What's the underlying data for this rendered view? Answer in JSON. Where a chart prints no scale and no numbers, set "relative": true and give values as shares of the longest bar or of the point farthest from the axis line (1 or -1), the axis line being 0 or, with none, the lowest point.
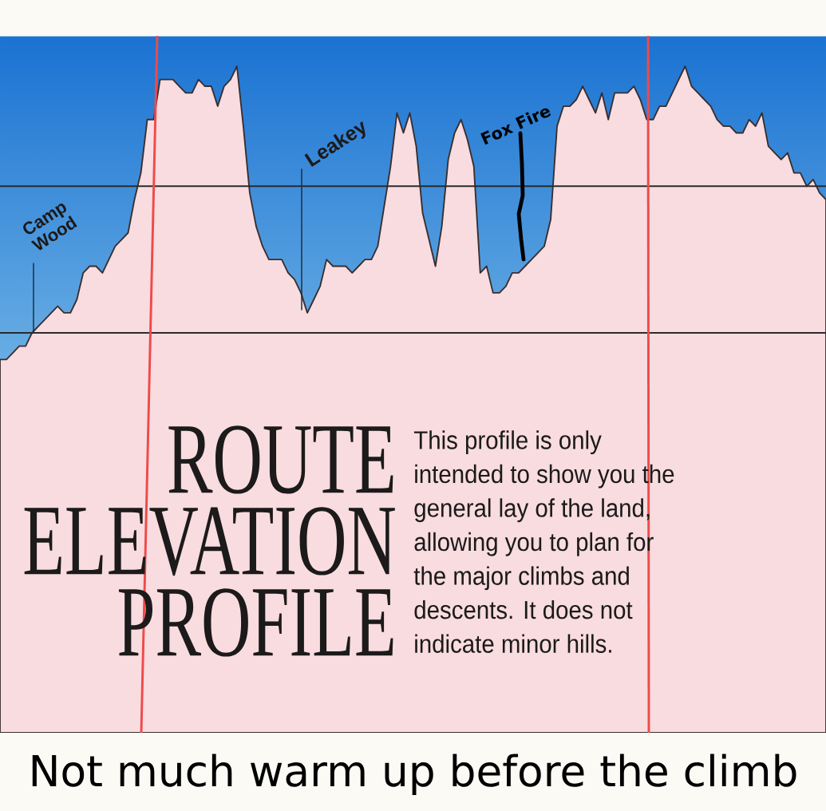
{
  "chart_data": {
    "type": "area",
    "title": "ROUTE ELEVATION PROFILE",
    "annotations": [
      "Camp Wood",
      "Leakey",
      "Fox Fire",
      "This profile is only intended to show you the general lay of the land, allowing you to plan for the major climbs and descents. It does not indicate minor hills.",
      "Not much warm up before the climb"
    ],
    "relative": true,
    "color": "#f8dcdf",
    "categories": [
      null,
      null,
      null,
      null,
      null,
      null,
      null,
      null,
      null,
      null,
      null,
      null,
      null,
      null,
      null,
      null,
      null,
      null,
      null,
      null,
      null,
      null,
      null,
      null,
      null,
      null,
      null,
      null,
      null,
      null,
      null,
      null,
      null,
      null,
      null,
      null,
      null,
      null,
      null,
      null,
      null,
      null,
      null,
      null,
      null,
      null,
      null,
      null,
      null,
      null,
      null,
      null,
      null,
      null,
      null,
      null,
      null,
      null,
      null,
      null,
      null,
      null,
      null,
      null,
      null,
      null,
      null,
      null,
      null,
      null,
      null,
      null,
      null,
      null,
      null,
      null,
      null,
      null,
      null,
      null,
      null,
      null,
      null,
      null,
      null,
      null,
      null,
      null,
      null,
      null,
      null,
      null,
      null,
      null,
      null,
      null,
      null,
      null,
      null,
      null,
      null,
      null,
      null,
      null,
      null,
      null,
      null,
      null,
      null,
      null,
      null,
      null,
      null,
      null,
      null,
      null,
      null,
      null,
      null,
      null,
      null,
      null,
      null,
      null,
      null,
      null,
      null,
      null,
      null,
      null
    ],
    "values": [
      0.56,
      0.56,
      0.57,
      0.58,
      0.58,
      0.6,
      0.61,
      0.62,
      0.63,
      0.64,
      0.63,
      0.63,
      0.65,
      0.69,
      0.7,
      0.7,
      0.69,
      0.71,
      0.73,
      0.74,
      0.75,
      0.8,
      0.84,
      0.92,
      0.92,
      0.98,
      0.98,
      0.98,
      0.97,
      0.96,
      0.96,
      0.98,
      0.97,
      0.97,
      0.94,
      0.97,
      0.98,
      1,
      0.91,
      0.81,
      0.76,
      0.73,
      0.71,
      0.71,
      0.71,
      0.69,
      0.68,
      0.66,
      0.63,
      0.65,
      0.67,
      0.71,
      0.7,
      0.7,
      0.7,
      0.69,
      0.7,
      0.71,
      0.71,
      0.73,
      0.79,
      0.85,
      0.93,
      0.9,
      0.93,
      0.88,
      0.78,
      0.74,
      0.7,
      0.76,
      0.86,
      0.9,
      0.92,
      0.89,
      0.85,
      0.69,
      0.7,
      0.66,
      0.66,
      0.67,
      0.69,
      0.69,
      0.7,
      0.71,
      0.72,
      0.73,
      0.77,
      0.91,
      0.94,
      0.94,
      0.95,
      0.97,
      0.95,
      0.93,
      0.96,
      0.92,
      0.96,
      0.96,
      0.96,
      0.97,
      0.95,
      0.92,
      0.92,
      0.94,
      0.94,
      0.96,
      0.98,
      1,
      0.97,
      0.96,
      0.95,
      0.94,
      0.92,
      0.91,
      0.91,
      0.9,
      0.9,
      0.92,
      0.91,
      0.93,
      0.88,
      0.87,
      0.86,
      0.87,
      0.84,
      0.84,
      0.82,
      0.83,
      0.81,
      0.8
    ],
    "ref_lines": [
      {
        "axis": "y",
        "value": 0.82,
        "color": "#2b2b2b"
      },
      {
        "axis": "y",
        "value": 0.6,
        "color": "#2b2b2b"
      }
    ]
  }
}
